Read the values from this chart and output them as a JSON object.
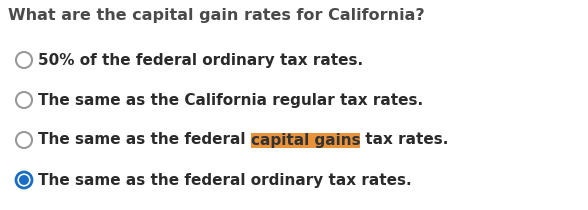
{
  "title": "What are the capital gain rates for California?",
  "title_color": "#4a4a4a",
  "title_fontsize": 11.5,
  "background_color": "#ffffff",
  "options": [
    "50% of the federal ordinary tax rates.",
    "The same as the California regular tax rates.",
    "The same as the federal capital gains tax rates.",
    "The same as the federal ordinary tax rates."
  ],
  "option_fontsize": 11,
  "option_color": "#2a2a2a",
  "selected_index": 3,
  "highlight_option_index": 2,
  "highlight_text": "capital gains",
  "highlight_before": "The same as the federal ",
  "highlight_after": " tax rates.",
  "highlight_bg_color": "#E8923A",
  "highlight_text_color": "#333333",
  "radio_unselected_edge": "#999999",
  "radio_selected_edge": "#1a6fc4",
  "radio_selected_fill": "#1a6fc4",
  "radio_unselected_fill": "#ffffff"
}
